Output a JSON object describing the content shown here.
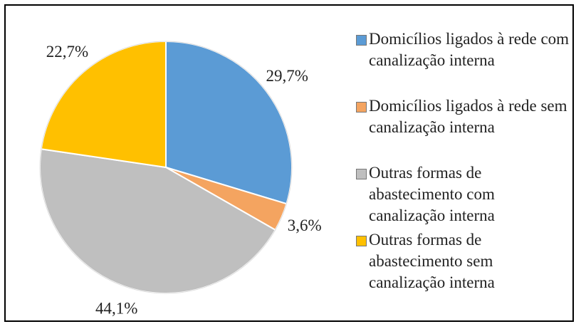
{
  "chart_data": {
    "type": "pie",
    "categories": [
      "Domicílios ligados à rede com canalização interna",
      "Domicílios ligados à rede sem canalização interna",
      "Outras formas de abastecimento com canalização interna",
      "Outras formas de abastecimento sem canalização interna"
    ],
    "values": [
      29.7,
      3.6,
      44.1,
      22.7
    ],
    "value_labels": [
      "29,7%",
      "3,6%",
      "44,1%",
      "22,7%"
    ],
    "colors": [
      "#5b9bd5",
      "#f4a460",
      "#bfbfbf",
      "#ffc000"
    ],
    "legend": "right"
  }
}
